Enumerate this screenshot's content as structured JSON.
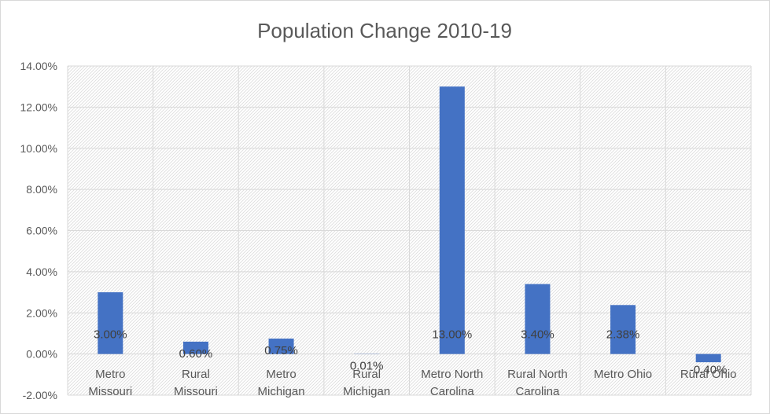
{
  "chart_data": {
    "type": "bar",
    "title": "Population Change 2010-19",
    "categories": [
      [
        "Metro",
        "Missouri"
      ],
      [
        "Rural",
        "Missouri"
      ],
      [
        "Metro",
        "Michigan"
      ],
      [
        "Rural",
        "Michigan"
      ],
      [
        "Metro North",
        "Carolina"
      ],
      [
        "Rural North",
        "Carolina"
      ],
      [
        "Metro Ohio"
      ],
      [
        "Rural Ohio"
      ]
    ],
    "values": [
      3.0,
      0.6,
      0.75,
      0.01,
      13.0,
      3.4,
      2.38,
      -0.4
    ],
    "data_labels": [
      "3.00%",
      "0.60%",
      "0.75%",
      "0.01%",
      "13.00%",
      "3.40%",
      "2.38%",
      "-0.40%"
    ],
    "ylim": [
      -2,
      14
    ],
    "yticks": [
      14,
      12,
      10,
      8,
      6,
      4,
      2,
      0,
      -2
    ],
    "ytick_labels": [
      "14.00%",
      "12.00%",
      "10.00%",
      "8.00%",
      "6.00%",
      "4.00%",
      "2.00%",
      "0.00%",
      "-2.00%"
    ],
    "grid": true,
    "legend": "none",
    "bar_color": "#4472c4",
    "gridline_color": "#d9d9d9",
    "plot_pattern_color": "#e3e3e3"
  }
}
